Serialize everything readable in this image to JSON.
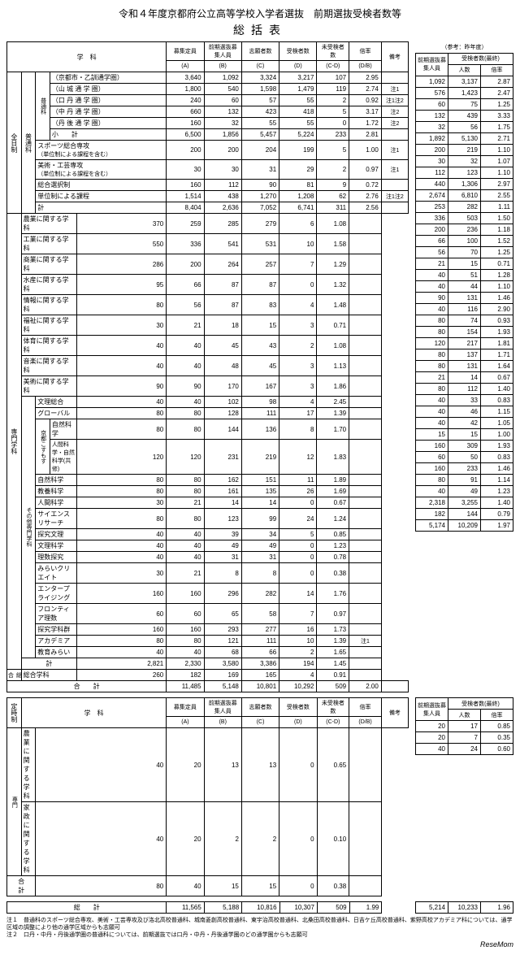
{
  "title": "令和４年度京都府公立高等学校入学者選抜　前期選抜受検者数等",
  "subtitle": "総括表",
  "ref_title": "（参考：昨年度）",
  "headers": {
    "gakka": "学　科",
    "boshu": "募集定員",
    "zenki": "前期選抜募集人員",
    "shigan": "志願者数",
    "juken": "受検者数",
    "misaku": "未受検者数",
    "bairitsu": "倍率",
    "biko": "備考",
    "a": "(A)",
    "b": "(B)",
    "c": "(C)",
    "d": "(D)",
    "cd": "(C-D)",
    "db": "(D/B)",
    "ref_zenki": "前期選抜募集人員",
    "ref_juken": "受検者数(最終)",
    "ref_ninzu": "人数",
    "ref_bai": "倍率"
  },
  "groups": {
    "zennichi": "全日制",
    "futsu": "普通科",
    "senmon": "専門学科",
    "sogo": "総合",
    "teiji": "定時制",
    "teiji_senmon": "専門"
  },
  "futsuka_sub": "普通科",
  "kyoto_kosmos": "京都こすもす",
  "sonota": "その他専門学科",
  "rows_futsu": [
    {
      "n": "（京都市・乙訓通学圏）",
      "a": "3,640",
      "b": "1,092",
      "c": "3,324",
      "d": "3,217",
      "cd": "107",
      "db": "2.95",
      "bk": "",
      "rb": "1,092",
      "rn": "3,137",
      "rr": "2.87"
    },
    {
      "n": "（山 城 通 学 圏）",
      "a": "1,800",
      "b": "540",
      "c": "1,598",
      "d": "1,479",
      "cd": "119",
      "db": "2.74",
      "bk": "注1",
      "rb": "576",
      "rn": "1,423",
      "rr": "2.47"
    },
    {
      "n": "（口 丹 通 学 圏）",
      "a": "240",
      "b": "60",
      "c": "57",
      "d": "55",
      "cd": "2",
      "db": "0.92",
      "bk": "注1注2",
      "rb": "60",
      "rn": "75",
      "rr": "1.25"
    },
    {
      "n": "（中 丹 通 学 圏）",
      "a": "660",
      "b": "132",
      "c": "423",
      "d": "418",
      "cd": "5",
      "db": "3.17",
      "bk": "注2",
      "rb": "132",
      "rn": "439",
      "rr": "3.33"
    },
    {
      "n": "（丹 後 通 学 圏）",
      "a": "160",
      "b": "32",
      "c": "55",
      "d": "55",
      "cd": "0",
      "db": "1.72",
      "bk": "注2",
      "rb": "32",
      "rn": "56",
      "rr": "1.75"
    },
    {
      "n": "小　　計",
      "a": "6,500",
      "b": "1,856",
      "c": "5,457",
      "d": "5,224",
      "cd": "233",
      "db": "2.81",
      "bk": "",
      "rb": "1,892",
      "rn": "5,130",
      "rr": "2.71"
    }
  ],
  "rows_futsu2": [
    {
      "n": "スポーツ総合専攻",
      "s": "（単位制による課程を含む）",
      "a": "200",
      "b": "200",
      "c": "204",
      "d": "199",
      "cd": "5",
      "db": "1.00",
      "bk": "注1",
      "rb": "200",
      "rn": "219",
      "rr": "1.10"
    },
    {
      "n": "美術・工芸専攻",
      "s": "（単位制による課程を含む）",
      "a": "30",
      "b": "30",
      "c": "31",
      "d": "29",
      "cd": "2",
      "db": "0.97",
      "bk": "注1",
      "rb": "30",
      "rn": "32",
      "rr": "1.07"
    },
    {
      "n": "総合選択制",
      "s": "",
      "a": "160",
      "b": "112",
      "c": "90",
      "d": "81",
      "cd": "9",
      "db": "0.72",
      "bk": "",
      "rb": "112",
      "rn": "123",
      "rr": "1.10"
    },
    {
      "n": "単位制による課程",
      "s": "",
      "a": "1,514",
      "b": "438",
      "c": "1,270",
      "d": "1,208",
      "cd": "62",
      "db": "2.76",
      "bk": "注1注2",
      "rb": "440",
      "rn": "1,306",
      "rr": "2.97"
    },
    {
      "n": "計",
      "s": "",
      "a": "8,404",
      "b": "2,636",
      "c": "7,052",
      "d": "6,741",
      "cd": "311",
      "db": "2.56",
      "bk": "",
      "rb": "2,674",
      "rn": "6,810",
      "rr": "2.55"
    }
  ],
  "rows_senmon": [
    {
      "n": "農業に関する学科",
      "a": "370",
      "b": "259",
      "c": "285",
      "d": "279",
      "cd": "6",
      "db": "1.08",
      "rb": "253",
      "rn": "282",
      "rr": "1.11"
    },
    {
      "n": "工業に関する学科",
      "a": "550",
      "b": "336",
      "c": "541",
      "d": "531",
      "cd": "10",
      "db": "1.58",
      "rb": "336",
      "rn": "503",
      "rr": "1.50"
    },
    {
      "n": "商業に関する学科",
      "a": "286",
      "b": "200",
      "c": "264",
      "d": "257",
      "cd": "7",
      "db": "1.29",
      "rb": "200",
      "rn": "236",
      "rr": "1.18"
    },
    {
      "n": "水産に関する学科",
      "a": "95",
      "b": "66",
      "c": "87",
      "d": "87",
      "cd": "0",
      "db": "1.32",
      "rb": "66",
      "rn": "100",
      "rr": "1.52"
    },
    {
      "n": "情報に関する学科",
      "a": "80",
      "b": "56",
      "c": "87",
      "d": "83",
      "cd": "4",
      "db": "1.48",
      "rb": "56",
      "rn": "70",
      "rr": "1.25"
    },
    {
      "n": "福祉に関する学科",
      "a": "30",
      "b": "21",
      "c": "18",
      "d": "15",
      "cd": "3",
      "db": "0.71",
      "rb": "21",
      "rn": "15",
      "rr": "0.71"
    },
    {
      "n": "体育に関する学科",
      "a": "40",
      "b": "40",
      "c": "45",
      "d": "43",
      "cd": "2",
      "db": "1.08",
      "rb": "40",
      "rn": "51",
      "rr": "1.28"
    },
    {
      "n": "音楽に関する学科",
      "a": "40",
      "b": "40",
      "c": "48",
      "d": "45",
      "cd": "3",
      "db": "1.13",
      "rb": "40",
      "rn": "44",
      "rr": "1.10"
    },
    {
      "n": "美術に関する学科",
      "a": "90",
      "b": "90",
      "c": "170",
      "d": "167",
      "cd": "3",
      "db": "1.86",
      "rb": "90",
      "rn": "131",
      "rr": "1.46"
    }
  ],
  "rows_sonota": [
    {
      "n": "文理総合",
      "a": "40",
      "b": "40",
      "c": "102",
      "d": "98",
      "cd": "4",
      "db": "2.45",
      "rb": "40",
      "rn": "116",
      "rr": "2.90"
    },
    {
      "n": "グローバル",
      "a": "80",
      "b": "80",
      "c": "128",
      "d": "111",
      "cd": "17",
      "db": "1.39",
      "rb": "80",
      "rn": "74",
      "rr": "0.93"
    },
    {
      "n": "自然科学",
      "a": "80",
      "b": "80",
      "c": "144",
      "d": "136",
      "cd": "8",
      "db": "1.70",
      "rb": "80",
      "rn": "154",
      "rr": "1.93"
    },
    {
      "n": "人間科学・自然科学(共修)",
      "a": "120",
      "b": "120",
      "c": "231",
      "d": "219",
      "cd": "12",
      "db": "1.83",
      "rb": "120",
      "rn": "217",
      "rr": "1.81"
    },
    {
      "n": "自然科学",
      "a": "80",
      "b": "80",
      "c": "162",
      "d": "151",
      "cd": "11",
      "db": "1.89",
      "rb": "80",
      "rn": "137",
      "rr": "1.71"
    },
    {
      "n": "教養科学",
      "a": "80",
      "b": "80",
      "c": "161",
      "d": "135",
      "cd": "26",
      "db": "1.69",
      "rb": "80",
      "rn": "131",
      "rr": "1.64"
    },
    {
      "n": "人間科学",
      "a": "30",
      "b": "21",
      "c": "14",
      "d": "14",
      "cd": "0",
      "db": "0.67",
      "rb": "21",
      "rn": "14",
      "rr": "0.67"
    },
    {
      "n": "サイエンスリサーチ",
      "a": "80",
      "b": "80",
      "c": "123",
      "d": "99",
      "cd": "24",
      "db": "1.24",
      "rb": "80",
      "rn": "112",
      "rr": "1.40"
    },
    {
      "n": "探究文理",
      "a": "40",
      "b": "40",
      "c": "39",
      "d": "34",
      "cd": "5",
      "db": "0.85",
      "rb": "40",
      "rn": "33",
      "rr": "0.83"
    },
    {
      "n": "文理科学",
      "a": "40",
      "b": "40",
      "c": "49",
      "d": "49",
      "cd": "0",
      "db": "1.23",
      "rb": "40",
      "rn": "46",
      "rr": "1.15"
    },
    {
      "n": "理数探究",
      "a": "40",
      "b": "40",
      "c": "31",
      "d": "31",
      "cd": "0",
      "db": "0.78",
      "rb": "40",
      "rn": "42",
      "rr": "1.05"
    },
    {
      "n": "みらいクリエイト",
      "a": "30",
      "b": "21",
      "c": "8",
      "d": "8",
      "cd": "0",
      "db": "0.38",
      "rb": "15",
      "rn": "15",
      "rr": "1.00"
    },
    {
      "n": "エンタープライジング",
      "a": "160",
      "b": "160",
      "c": "296",
      "d": "282",
      "cd": "14",
      "db": "1.76",
      "rb": "160",
      "rn": "309",
      "rr": "1.93"
    },
    {
      "n": "フロンティア理数",
      "a": "60",
      "b": "60",
      "c": "65",
      "d": "58",
      "cd": "7",
      "db": "0.97",
      "rb": "60",
      "rn": "50",
      "rr": "0.83"
    },
    {
      "n": "探究学科群",
      "a": "160",
      "b": "160",
      "c": "293",
      "d": "277",
      "cd": "16",
      "db": "1.73",
      "rb": "160",
      "rn": "233",
      "rr": "1.46"
    },
    {
      "n": "アカデミア",
      "a": "80",
      "b": "80",
      "c": "121",
      "d": "111",
      "cd": "10",
      "db": "1.39",
      "bk": "注1",
      "rb": "80",
      "rn": "91",
      "rr": "1.14"
    },
    {
      "n": "教育みらい",
      "a": "40",
      "b": "40",
      "c": "68",
      "d": "66",
      "cd": "2",
      "db": "1.65",
      "rb": "40",
      "rn": "49",
      "rr": "1.23"
    }
  ],
  "senmon_kei": {
    "n": "計",
    "a": "2,821",
    "b": "2,330",
    "c": "3,580",
    "d": "3,386",
    "cd": "194",
    "db": "1.45",
    "rb": "2,318",
    "rn": "3,255",
    "rr": "1.40"
  },
  "sogo_row": {
    "n": "総合学科",
    "a": "260",
    "b": "182",
    "c": "169",
    "d": "165",
    "cd": "4",
    "db": "0.91",
    "rb": "182",
    "rn": "144",
    "rr": "0.79"
  },
  "gokei": {
    "n": "合　　計",
    "a": "11,485",
    "b": "5,148",
    "c": "10,801",
    "d": "10,292",
    "cd": "509",
    "db": "2.00",
    "rb": "5,174",
    "rn": "10,209",
    "rr": "1.97"
  },
  "teiji_rows": [
    {
      "n": "農業に関する学科",
      "a": "40",
      "b": "20",
      "c": "13",
      "d": "13",
      "cd": "0",
      "db": "0.65",
      "rb": "20",
      "rn": "17",
      "rr": "0.85"
    },
    {
      "n": "家政に関する学科",
      "a": "40",
      "b": "20",
      "c": "2",
      "d": "2",
      "cd": "0",
      "db": "0.10",
      "rb": "20",
      "rn": "7",
      "rr": "0.35"
    }
  ],
  "teiji_gokei": {
    "n": "合　　計",
    "a": "80",
    "b": "40",
    "c": "15",
    "d": "15",
    "cd": "0",
    "db": "0.38",
    "rb": "40",
    "rn": "24",
    "rr": "0.60"
  },
  "sokei": {
    "n": "総　　計",
    "a": "11,565",
    "b": "5,188",
    "c": "10,816",
    "d": "10,307",
    "cd": "509",
    "db": "1.99",
    "rb": "5,214",
    "rn": "10,233",
    "rr": "1.96"
  },
  "notes": [
    "注１　普通科のスポーツ総合専攻、美術・工芸専攻及び洛北高校普通科、城南菱創高校普通科、東宇治高校普通科、北桑田高校普通科、日吉ケ丘高校普通科、紫野高校アカデミア科については、通学区域の調整により他の通学区域からも志願可",
    "注２　口丹・中丹・丹後通学圏の普通科については、前期選抜では口丹・中丹・丹後通学圏のどの通学圏からも志願可"
  ],
  "resemom": "ReseMom"
}
